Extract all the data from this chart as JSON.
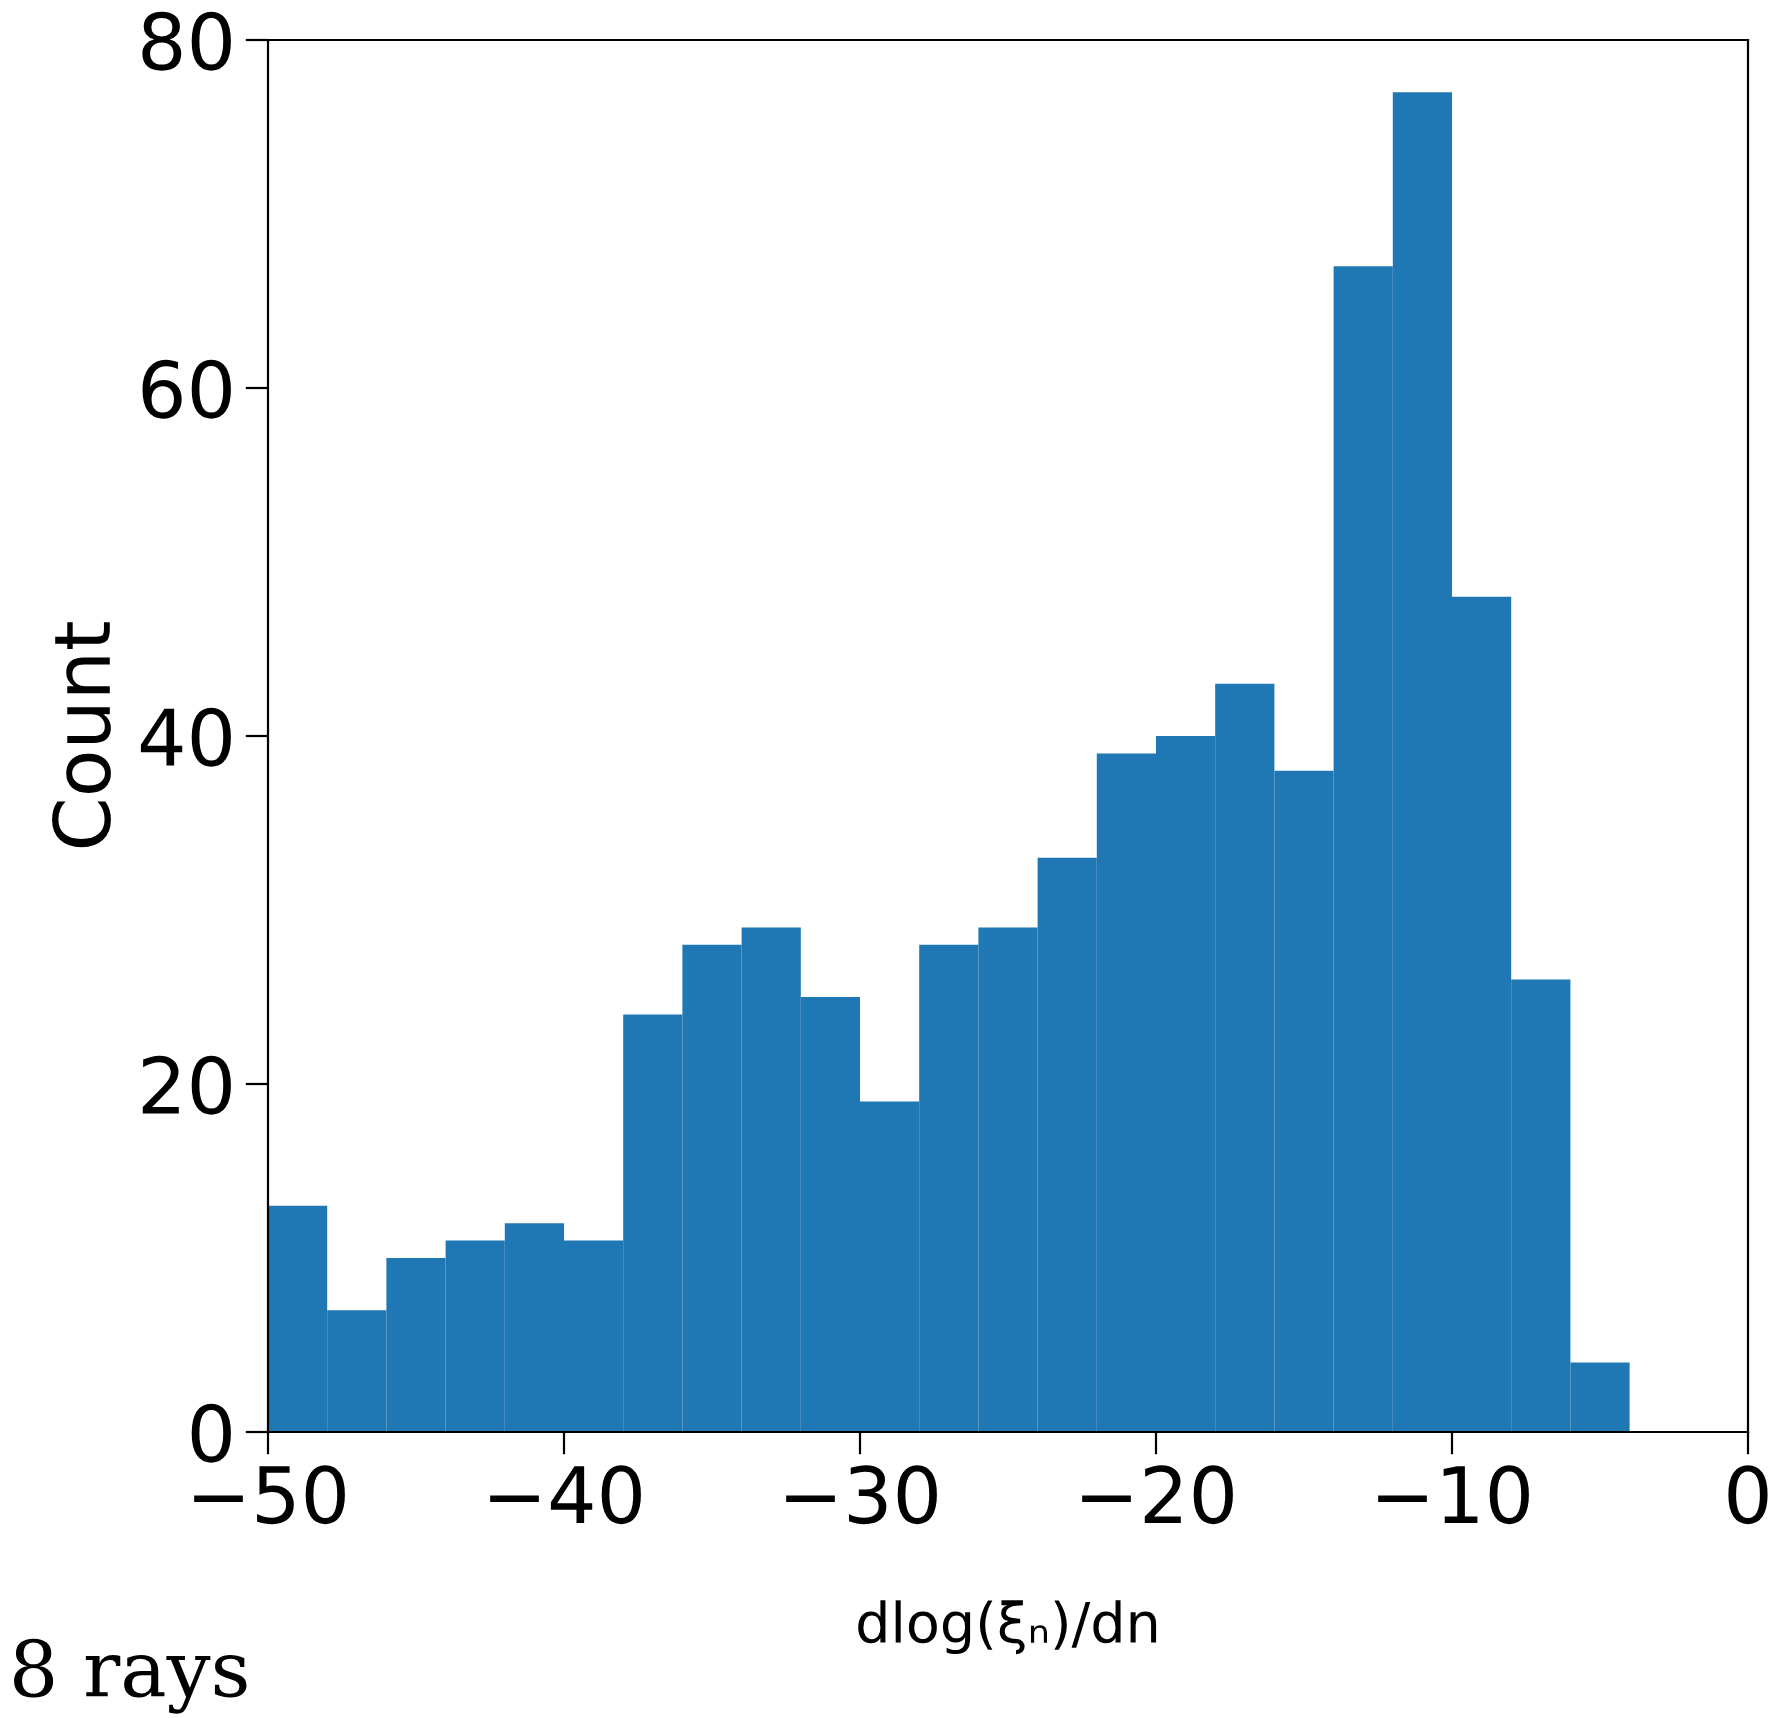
{
  "chart_data": {
    "type": "histogram",
    "xlabel": "dlog(ξₙ)/dn",
    "ylabel": "Count",
    "color": "#1f77b4",
    "bins": [
      -50,
      -48,
      -46,
      -44,
      -42,
      -40,
      -38,
      -36,
      -34,
      -32,
      -30,
      -28,
      -26,
      -24,
      -22,
      -20,
      -18,
      -16,
      -14,
      -12,
      -10,
      -8,
      -6,
      -4
    ],
    "values": [
      13,
      7,
      10,
      11,
      12,
      11,
      24,
      28,
      29,
      25,
      19,
      28,
      29,
      33,
      39,
      40,
      43,
      38,
      67,
      77,
      48,
      26,
      4
    ],
    "xlim": [
      -50,
      0
    ],
    "ylim": [
      0,
      80
    ],
    "xticks": [
      -50,
      -40,
      -30,
      -20,
      -10,
      0
    ],
    "yticks": [
      0,
      20,
      40,
      60,
      80
    ],
    "grid": false,
    "annotations": [
      "8 rays"
    ]
  }
}
